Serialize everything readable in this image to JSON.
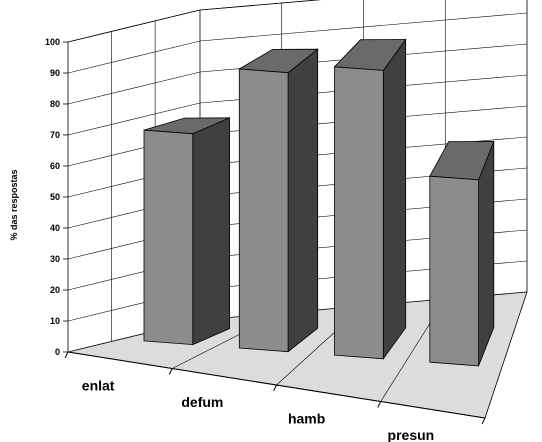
{
  "chart_data": {
    "type": "bar",
    "title": "",
    "xlabel": "",
    "ylabel": "% das respostas",
    "categories": [
      "enlat",
      "defum",
      "hamb",
      "presun"
    ],
    "values": [
      68,
      90,
      93,
      60
    ],
    "ylim": [
      0,
      100
    ],
    "yticks": [
      "0",
      "10",
      "20",
      "30",
      "40",
      "50",
      "60",
      "70",
      "80",
      "90",
      "100"
    ],
    "grid": true,
    "style": "3d-column",
    "colors": {
      "bar_front": "#8c8c8c",
      "bar_side": "#404040",
      "bar_top": "#6a6a6a",
      "floor": "#dcdcdc"
    }
  }
}
